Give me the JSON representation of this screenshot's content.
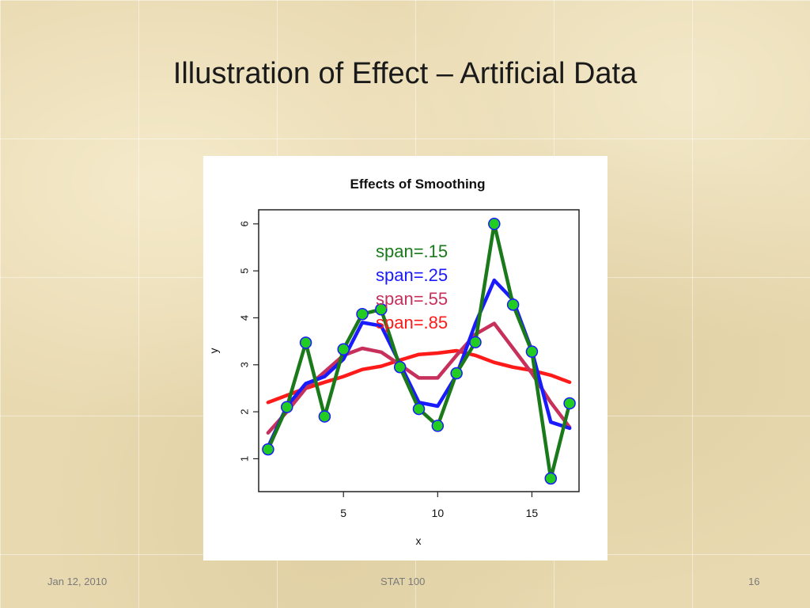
{
  "slide": {
    "title": "Illustration of Effect – Artificial Data",
    "footer_date": "Jan 12, 2010",
    "footer_course": "STAT 100",
    "page_number": "16"
  },
  "chart_data": {
    "type": "line",
    "title": "Effects of Smoothing",
    "xlabel": "x",
    "ylabel": "y",
    "xlim": [
      0.5,
      17.5
    ],
    "ylim": [
      0.3,
      6.3
    ],
    "x_ticks": [
      5,
      10,
      15
    ],
    "y_ticks": [
      1,
      2,
      3,
      4,
      5,
      6
    ],
    "grid": false,
    "legend_position": "top-center",
    "points": {
      "x": [
        1,
        2,
        3,
        4,
        5,
        6,
        7,
        8,
        9,
        10,
        11,
        12,
        13,
        14,
        15,
        16,
        17
      ],
      "y": [
        1.2,
        2.1,
        3.47,
        1.9,
        3.33,
        4.08,
        4.18,
        2.95,
        2.06,
        1.7,
        2.82,
        3.48,
        6.0,
        4.28,
        3.28,
        0.58,
        2.18
      ]
    },
    "series": [
      {
        "name": "span=.85",
        "color": "#ff1a1a",
        "x": [
          1,
          2,
          3,
          4,
          5,
          6,
          7,
          8,
          9,
          10,
          11,
          12,
          13,
          14,
          15,
          16,
          17
        ],
        "y": [
          2.2,
          2.35,
          2.5,
          2.63,
          2.75,
          2.9,
          2.97,
          3.1,
          3.22,
          3.25,
          3.3,
          3.2,
          3.05,
          2.95,
          2.88,
          2.78,
          2.63
        ]
      },
      {
        "name": "span=.55",
        "color": "#c8305c",
        "x": [
          1,
          2,
          3,
          4,
          5,
          6,
          7,
          8,
          9,
          10,
          11,
          12,
          13,
          14,
          15,
          16,
          17
        ],
        "y": [
          1.55,
          2.0,
          2.5,
          2.85,
          3.2,
          3.35,
          3.27,
          3.0,
          2.72,
          2.72,
          3.2,
          3.65,
          3.88,
          3.35,
          2.82,
          2.2,
          1.67
        ]
      },
      {
        "name": "span=.25",
        "color": "#1a1aff",
        "x": [
          1,
          2,
          3,
          4,
          5,
          6,
          7,
          8,
          9,
          10,
          11,
          12,
          13,
          14,
          15,
          16,
          17
        ],
        "y": [
          1.25,
          2.12,
          2.6,
          2.75,
          3.12,
          3.9,
          3.83,
          3.02,
          2.2,
          2.12,
          2.78,
          3.88,
          4.8,
          4.38,
          3.3,
          1.78,
          1.65
        ]
      },
      {
        "name": "span=.15",
        "color": "#1a7a1a",
        "x": [
          1,
          2,
          3,
          4,
          5,
          6,
          7,
          8,
          9,
          10,
          11,
          12,
          13,
          14,
          15,
          16,
          17
        ],
        "y": [
          1.2,
          2.1,
          3.47,
          1.9,
          3.33,
          4.08,
          4.18,
          2.95,
          2.06,
          1.7,
          2.82,
          3.48,
          6.0,
          4.28,
          3.28,
          0.58,
          2.18
        ]
      }
    ],
    "legend": [
      {
        "label": "span=.15",
        "color": "#1a7a1a"
      },
      {
        "label": "span=.25",
        "color": "#1a1aff"
      },
      {
        "label": "span=.55",
        "color": "#c8305c"
      },
      {
        "label": "span=.85",
        "color": "#ff1a1a"
      }
    ]
  }
}
